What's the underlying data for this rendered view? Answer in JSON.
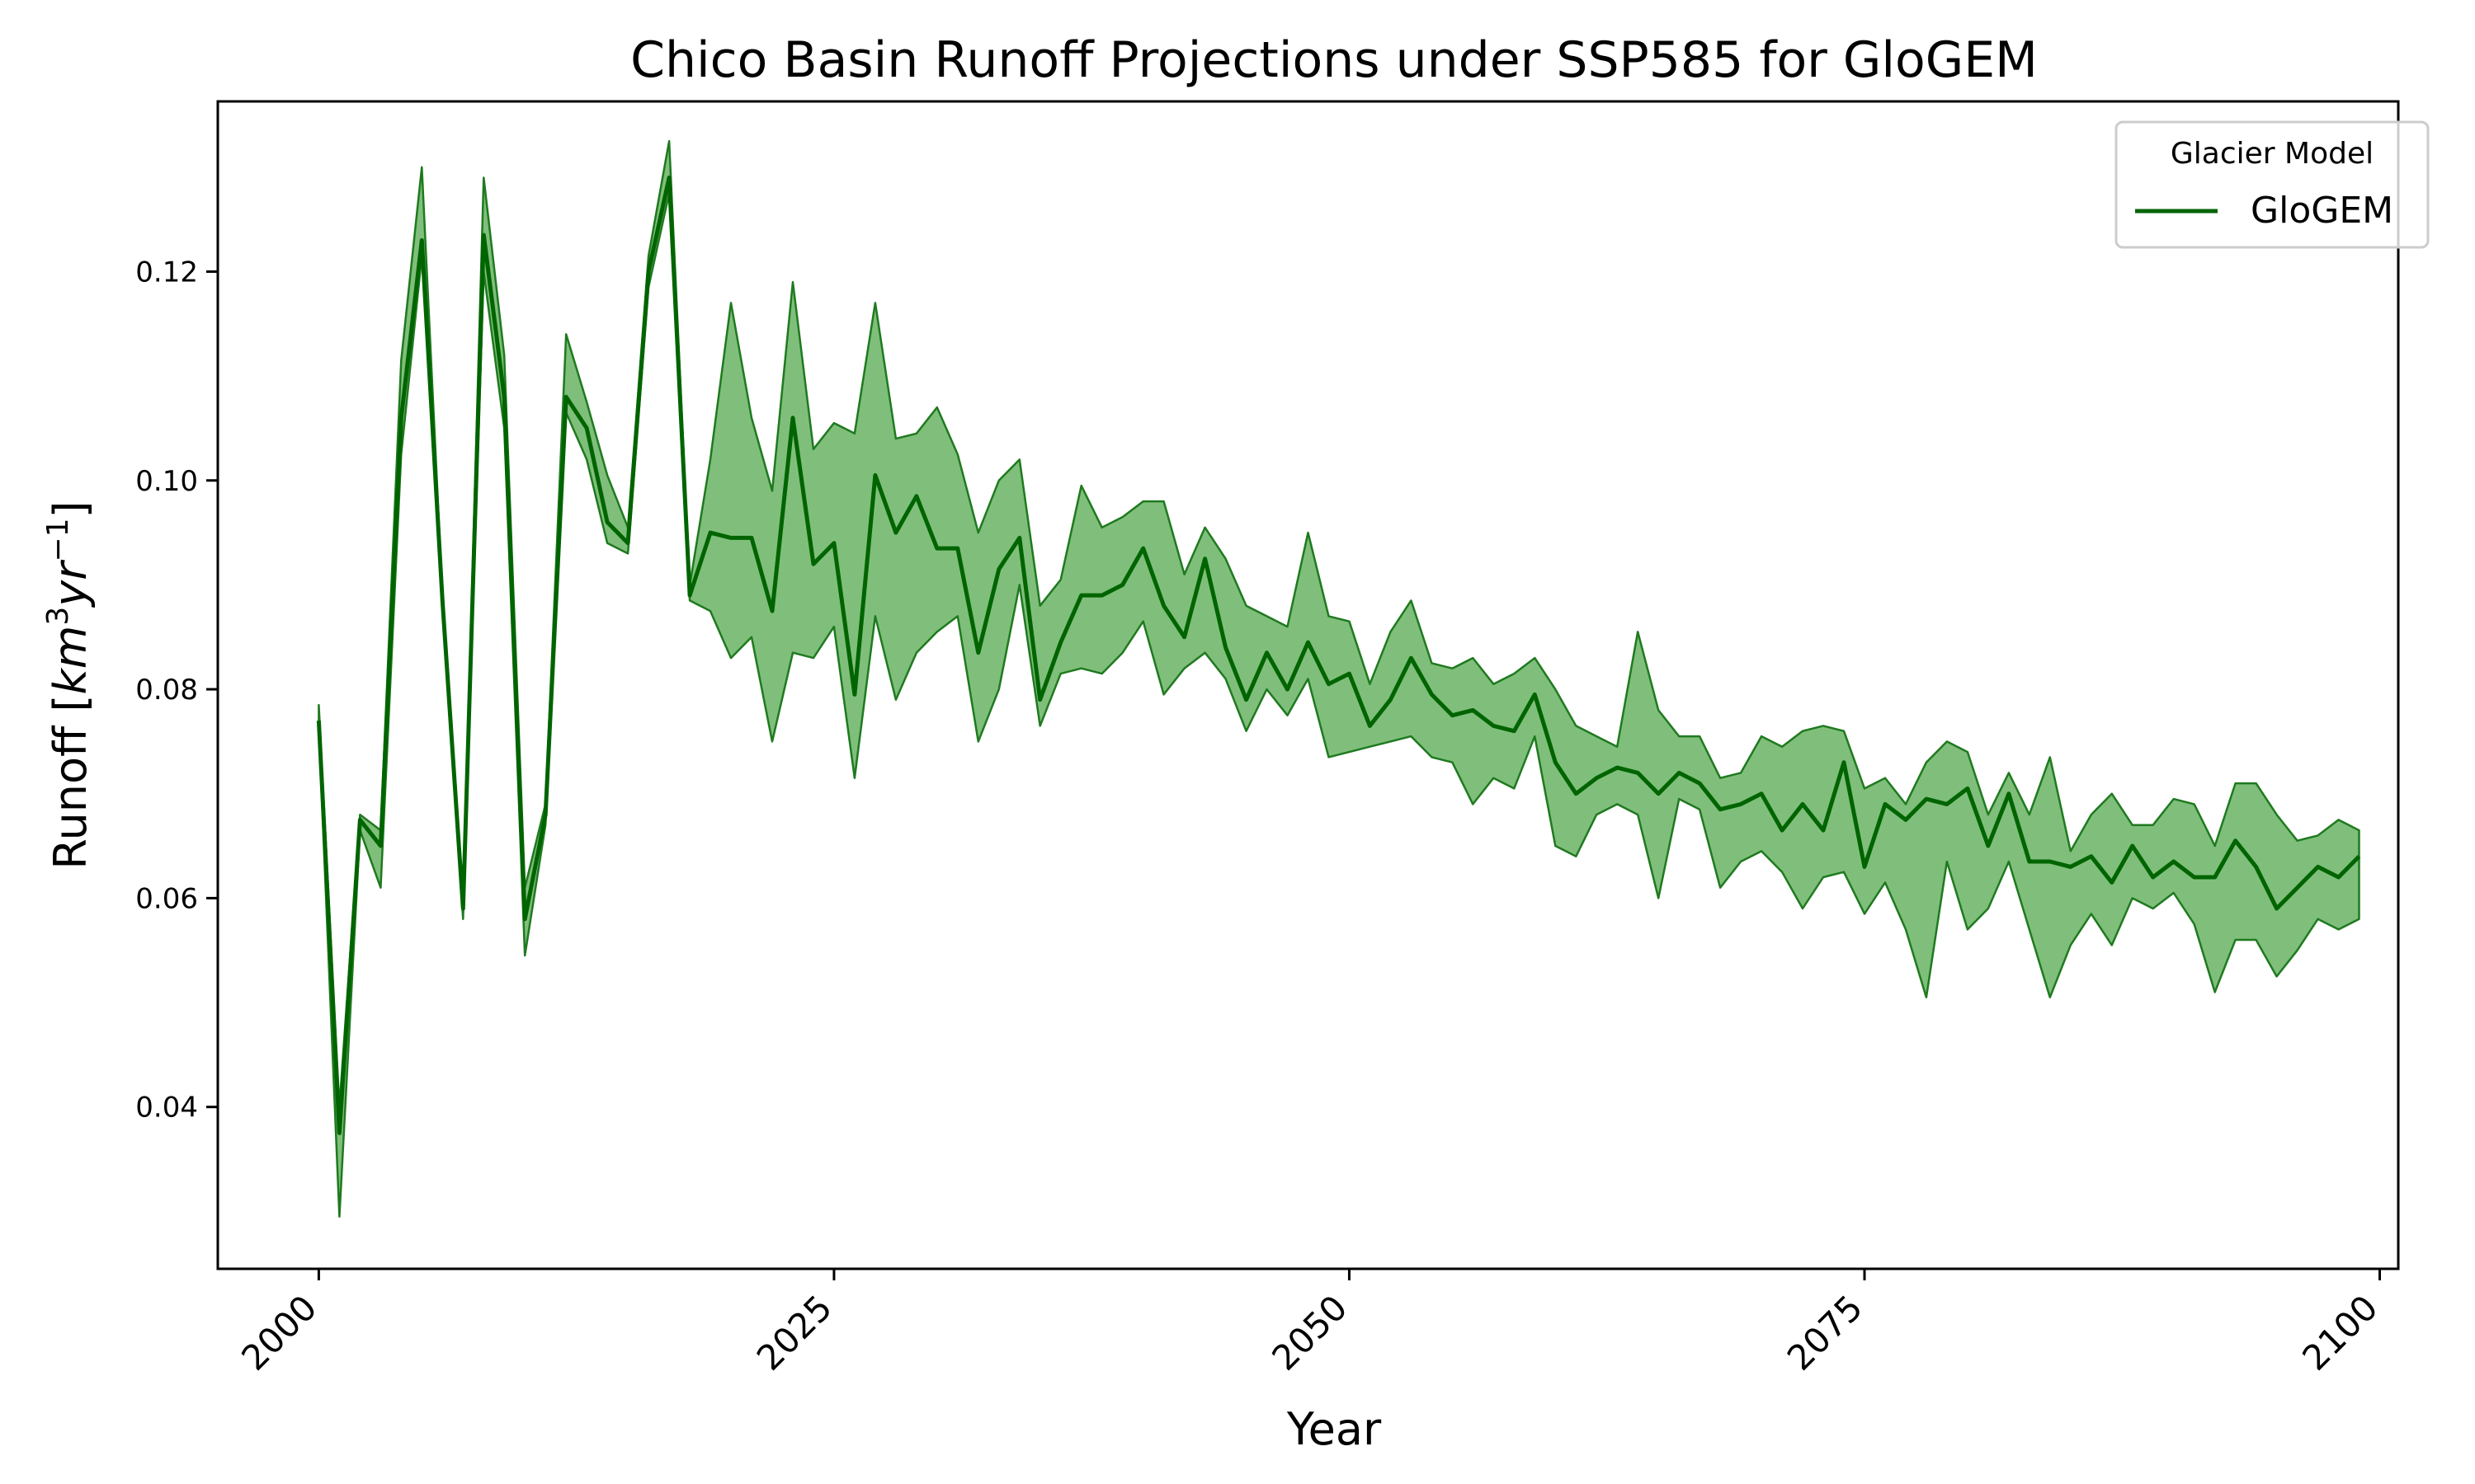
{
  "chart_data": {
    "type": "line",
    "title": "Chico Basin Runoff Projections under SSP585 for GloGEM",
    "xlabel": "Year",
    "ylabel_text": "Runoff [",
    "ylabel_unit": {
      "base1": "km",
      "sup1": "3",
      "base2": "yr",
      "sup2": "−1",
      "close": "]"
    },
    "xlim": [
      1995.1,
      2100.9
    ],
    "ylim": [
      0.0245,
      0.1363
    ],
    "xticks": [
      2000,
      2025,
      2050,
      2075,
      2100
    ],
    "xtick_labels": [
      "2000",
      "2025",
      "2050",
      "2075",
      "2100"
    ],
    "yticks": [
      0.04,
      0.06,
      0.08,
      0.1,
      0.12
    ],
    "ytick_labels": [
      "0.04",
      "0.06",
      "0.08",
      "0.10",
      "0.12"
    ],
    "grid": false,
    "legend": {
      "title": "Glacier Model",
      "placement": "top-right",
      "entries": [
        "GloGEM"
      ]
    },
    "colors": {
      "line": "#006400",
      "band_fill": "#7fbf7b",
      "band_edge": "#1f7a1f"
    },
    "series": [
      {
        "name": "GloGEM",
        "x_start": 2000,
        "x_step": 1,
        "mean": [
          0.077,
          0.0375,
          0.0675,
          0.065,
          0.106,
          0.123,
          0.0885,
          0.059,
          0.1235,
          0.108,
          0.058,
          0.068,
          0.108,
          0.105,
          0.096,
          0.094,
          0.12,
          0.129,
          0.089,
          0.095,
          0.0945,
          0.0945,
          0.0875,
          0.106,
          0.092,
          0.094,
          0.0795,
          0.1005,
          0.095,
          0.0985,
          0.0935,
          0.0935,
          0.0835,
          0.0915,
          0.0945,
          0.079,
          0.0845,
          0.089,
          0.089,
          0.09,
          0.0935,
          0.088,
          0.085,
          0.0925,
          0.084,
          0.079,
          0.0835,
          0.08,
          0.0845,
          0.0805,
          0.0815,
          0.0765,
          0.079,
          0.083,
          0.0795,
          0.0775,
          0.078,
          0.0765,
          0.076,
          0.0795,
          0.073,
          0.07,
          0.0715,
          0.0725,
          0.072,
          0.07,
          0.072,
          0.071,
          0.0685,
          0.069,
          0.07,
          0.0665,
          0.069,
          0.0665,
          0.073,
          0.063,
          0.069,
          0.0675,
          0.0695,
          0.069,
          0.0705,
          0.065,
          0.07,
          0.0635,
          0.0635,
          0.063,
          0.064,
          0.0615,
          0.065,
          0.062,
          0.0635,
          0.062,
          0.062,
          0.0655,
          0.063,
          0.059,
          0.061,
          0.063,
          0.062,
          0.064
        ],
        "low": [
          0.0765,
          0.0295,
          0.0665,
          0.061,
          0.1025,
          0.1215,
          0.088,
          0.058,
          0.12,
          0.105,
          0.0545,
          0.067,
          0.1065,
          0.102,
          0.094,
          0.093,
          0.1185,
          0.1275,
          0.0885,
          0.0875,
          0.083,
          0.085,
          0.075,
          0.0835,
          0.083,
          0.086,
          0.0715,
          0.087,
          0.079,
          0.0835,
          0.0855,
          0.087,
          0.075,
          0.08,
          0.09,
          0.0765,
          0.0815,
          0.082,
          0.0815,
          0.0835,
          0.0865,
          0.0795,
          0.082,
          0.0835,
          0.081,
          0.076,
          0.08,
          0.0775,
          0.081,
          0.0735,
          0.074,
          0.0745,
          0.075,
          0.0755,
          0.0735,
          0.073,
          0.069,
          0.0715,
          0.0705,
          0.0755,
          0.065,
          0.064,
          0.068,
          0.069,
          0.068,
          0.06,
          0.0695,
          0.0685,
          0.061,
          0.0635,
          0.0645,
          0.0625,
          0.059,
          0.062,
          0.0625,
          0.0585,
          0.0615,
          0.057,
          0.0505,
          0.0635,
          0.057,
          0.059,
          0.0635,
          0.057,
          0.0505,
          0.0555,
          0.0585,
          0.0555,
          0.06,
          0.059,
          0.0605,
          0.0575,
          0.051,
          0.056,
          0.056,
          0.0525,
          0.055,
          0.058,
          0.057,
          0.058
        ],
        "high": [
          0.0785,
          0.04,
          0.068,
          0.0665,
          0.1115,
          0.13,
          0.089,
          0.0595,
          0.129,
          0.112,
          0.061,
          0.069,
          0.114,
          0.1075,
          0.1005,
          0.0955,
          0.1215,
          0.1325,
          0.09,
          0.102,
          0.117,
          0.106,
          0.099,
          0.119,
          0.103,
          0.1055,
          0.1045,
          0.117,
          0.104,
          0.1045,
          0.107,
          0.1025,
          0.095,
          0.1,
          0.102,
          0.088,
          0.0905,
          0.0995,
          0.0955,
          0.0965,
          0.098,
          0.098,
          0.091,
          0.0955,
          0.0925,
          0.088,
          0.087,
          0.086,
          0.095,
          0.087,
          0.0865,
          0.0805,
          0.0855,
          0.0885,
          0.0825,
          0.082,
          0.083,
          0.0805,
          0.0815,
          0.083,
          0.08,
          0.0765,
          0.0755,
          0.0745,
          0.0855,
          0.078,
          0.0755,
          0.0755,
          0.0715,
          0.072,
          0.0755,
          0.0745,
          0.076,
          0.0765,
          0.076,
          0.0705,
          0.0715,
          0.069,
          0.073,
          0.075,
          0.074,
          0.068,
          0.072,
          0.068,
          0.0735,
          0.0645,
          0.068,
          0.07,
          0.067,
          0.067,
          0.0695,
          0.069,
          0.065,
          0.071,
          0.071,
          0.068,
          0.0655,
          0.066,
          0.0675,
          0.0665
        ]
      }
    ]
  }
}
